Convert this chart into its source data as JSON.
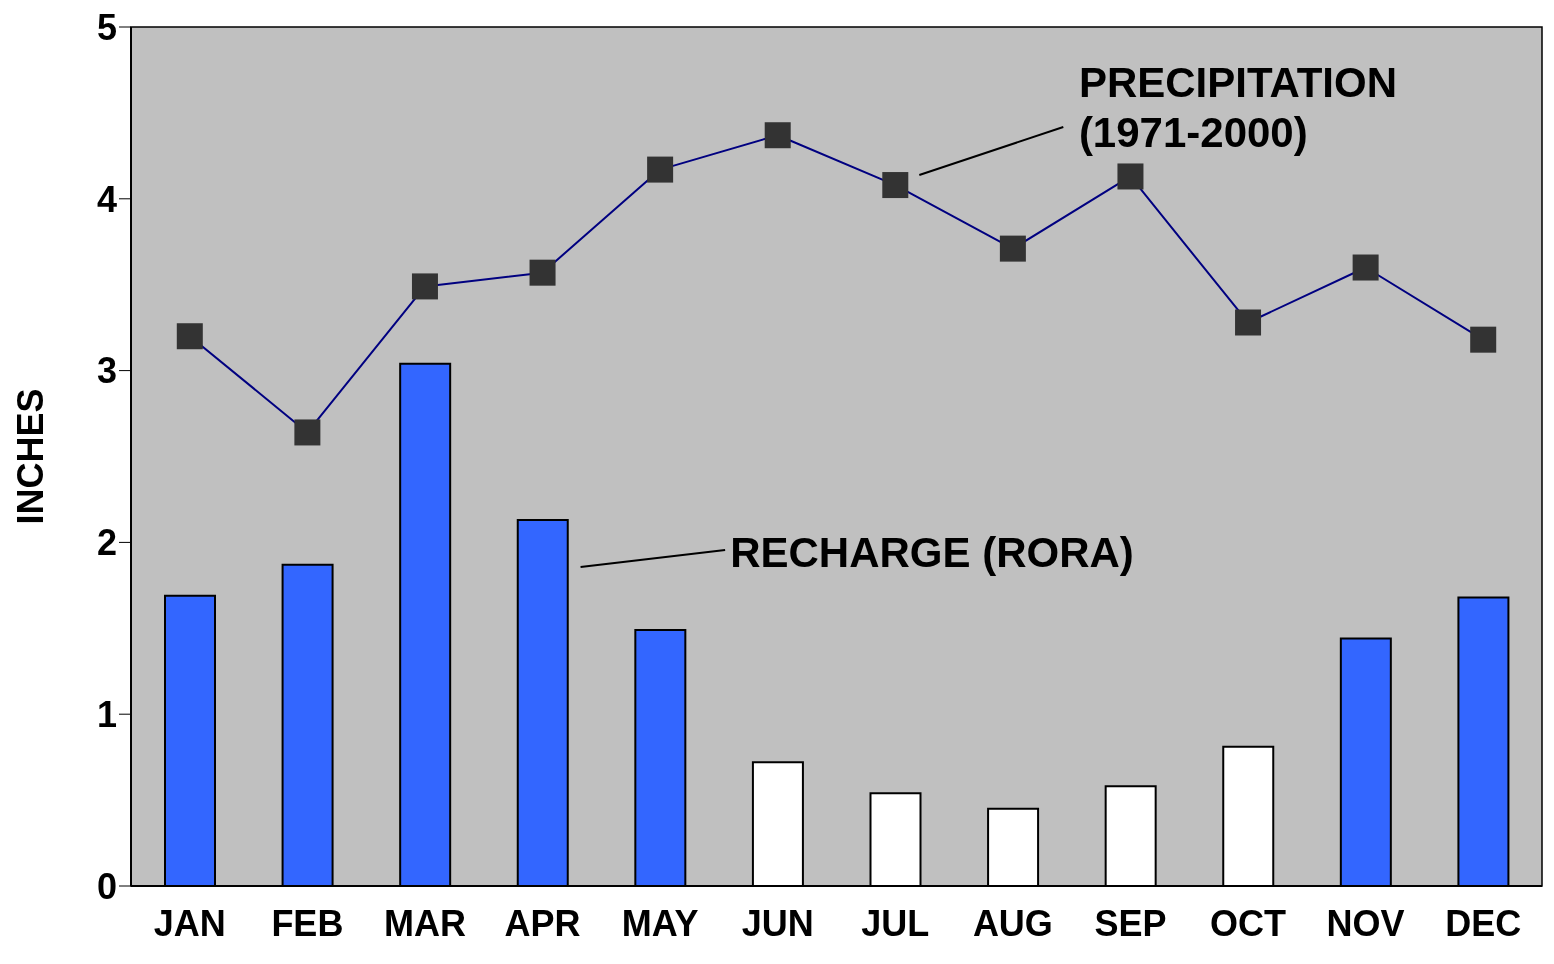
{
  "chart_data": {
    "type": "bar",
    "ylabel": "INCHES",
    "categories": [
      "JAN",
      "FEB",
      "MAR",
      "APR",
      "MAY",
      "JUN",
      "JUL",
      "AUG",
      "SEP",
      "OCT",
      "NOV",
      "DEC"
    ],
    "series": [
      {
        "name": "RECHARGE (RORA)",
        "colors": [
          "#3366ff",
          "#3366ff",
          "#3366ff",
          "#3366ff",
          "#3366ff",
          "#ffffff",
          "#ffffff",
          "#ffffff",
          "#ffffff",
          "#ffffff",
          "#3366ff",
          "#3366ff"
        ],
        "values": [
          1.69,
          1.87,
          3.04,
          2.13,
          1.49,
          0.72,
          0.54,
          0.45,
          0.58,
          0.81,
          1.44,
          1.68
        ]
      },
      {
        "name": "PRECIPITATION (1971-2000)",
        "type": "line",
        "color": "#000080",
        "marker": "square",
        "values": [
          3.2,
          2.64,
          3.49,
          3.57,
          4.17,
          4.37,
          4.08,
          3.71,
          4.13,
          3.28,
          3.6,
          3.18
        ]
      }
    ],
    "ylim": [
      0,
      5
    ],
    "yticks": [
      0,
      1,
      2,
      3,
      4,
      5
    ],
    "grid": false
  }
}
